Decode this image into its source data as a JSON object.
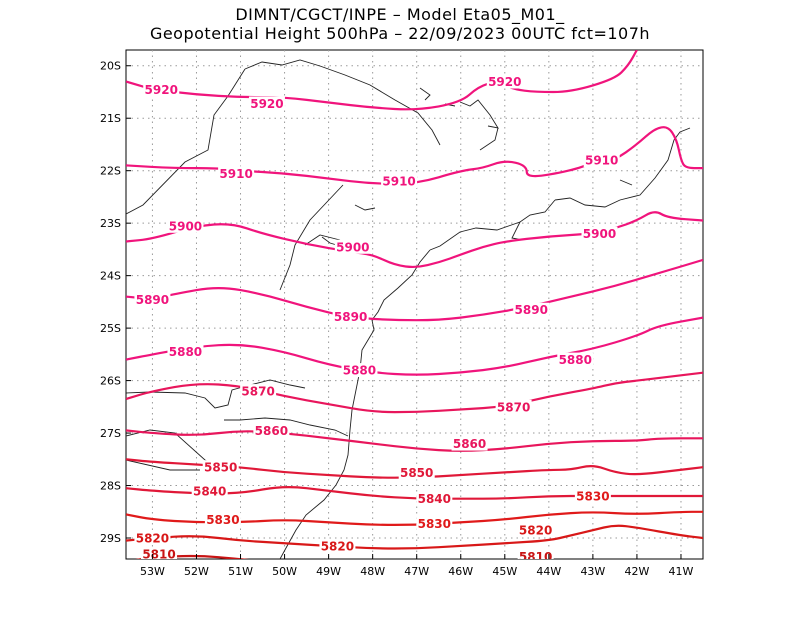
{
  "header": {
    "line1": "DIMNT/CGCT/INPE –   Model Eta05_M01_",
    "line2": "Geopotential Height 500hPa –  22/09/2023 00UTC fct=107h"
  },
  "chart_data": {
    "type": "contour",
    "title": "Geopotential Height 500hPa",
    "source": "DIMNT/CGCT/INPE",
    "model": "Eta05_M01_",
    "run": "22/09/2023 00UTC",
    "forecast": "fct=107h",
    "xlim": [
      -53.6,
      -40.5
    ],
    "ylim": [
      -29.4,
      -19.7
    ],
    "grid": true,
    "x_ticks": [
      {
        "value": -53,
        "label": "53W"
      },
      {
        "value": -52,
        "label": "52W"
      },
      {
        "value": -51,
        "label": "51W"
      },
      {
        "value": -50,
        "label": "50W"
      },
      {
        "value": -49,
        "label": "49W"
      },
      {
        "value": -48,
        "label": "48W"
      },
      {
        "value": -47,
        "label": "47W"
      },
      {
        "value": -46,
        "label": "46W"
      },
      {
        "value": -45,
        "label": "45W"
      },
      {
        "value": -44,
        "label": "44W"
      },
      {
        "value": -43,
        "label": "43W"
      },
      {
        "value": -42,
        "label": "42W"
      },
      {
        "value": -41,
        "label": "41W"
      }
    ],
    "y_ticks": [
      {
        "value": -20,
        "label": "20S"
      },
      {
        "value": -21,
        "label": "21S"
      },
      {
        "value": -22,
        "label": "22S"
      },
      {
        "value": -23,
        "label": "23S"
      },
      {
        "value": -24,
        "label": "24S"
      },
      {
        "value": -25,
        "label": "25S"
      },
      {
        "value": -26,
        "label": "26S"
      },
      {
        "value": -27,
        "label": "27S"
      },
      {
        "value": -28,
        "label": "28S"
      },
      {
        "value": -29,
        "label": "29S"
      }
    ],
    "contours": [
      {
        "level": 5920,
        "color": "#f0147c",
        "points": [
          [
            -53.6,
            -20.3
          ],
          [
            -53.0,
            -20.45
          ],
          [
            -52.0,
            -20.55
          ],
          [
            -51.0,
            -20.6
          ],
          [
            -50.0,
            -20.6
          ],
          [
            -49.0,
            -20.7
          ],
          [
            -48.0,
            -20.8
          ],
          [
            -47.0,
            -20.85
          ],
          [
            -46.0,
            -20.7
          ],
          [
            -45.6,
            -20.4
          ],
          [
            -45.2,
            -20.3
          ],
          [
            -44.8,
            -20.45
          ],
          [
            -44.3,
            -20.5
          ],
          [
            -43.5,
            -20.5
          ],
          [
            -42.5,
            -20.25
          ],
          [
            -42.2,
            -20.0
          ],
          [
            -42.0,
            -19.7
          ]
        ],
        "labels": [
          [
            -52.8,
            -20.45
          ],
          [
            -50.4,
            -20.72
          ],
          [
            -45.0,
            -20.3
          ]
        ]
      },
      {
        "level": 5910,
        "color": "#f0147c",
        "points": [
          [
            -53.6,
            -21.9
          ],
          [
            -52.5,
            -21.95
          ],
          [
            -51.5,
            -21.95
          ],
          [
            -51.0,
            -22.0
          ],
          [
            -50.0,
            -22.05
          ],
          [
            -49.0,
            -22.15
          ],
          [
            -48.0,
            -22.25
          ],
          [
            -47.0,
            -22.25
          ],
          [
            -46.0,
            -22.0
          ],
          [
            -45.5,
            -21.95
          ],
          [
            -45.0,
            -21.8
          ],
          [
            -44.5,
            -21.9
          ],
          [
            -44.5,
            -22.15
          ],
          [
            -43.5,
            -22.0
          ],
          [
            -43.0,
            -21.85
          ],
          [
            -42.5,
            -21.8
          ],
          [
            -42.0,
            -21.5
          ],
          [
            -41.6,
            -21.2
          ],
          [
            -41.3,
            -21.15
          ],
          [
            -41.1,
            -21.4
          ],
          [
            -41.0,
            -21.8
          ],
          [
            -40.9,
            -21.95
          ],
          [
            -40.5,
            -21.95
          ]
        ],
        "labels": [
          [
            -51.1,
            -22.05
          ],
          [
            -47.4,
            -22.2
          ],
          [
            -42.8,
            -21.8
          ]
        ]
      },
      {
        "level": 5900,
        "color": "#f0147c",
        "points": [
          [
            -53.6,
            -23.35
          ],
          [
            -53.0,
            -23.3
          ],
          [
            -52.0,
            -23.05
          ],
          [
            -51.2,
            -23.0
          ],
          [
            -50.5,
            -23.2
          ],
          [
            -49.5,
            -23.4
          ],
          [
            -48.5,
            -23.55
          ],
          [
            -48.0,
            -23.6
          ],
          [
            -47.5,
            -23.8
          ],
          [
            -47.0,
            -23.85
          ],
          [
            -46.5,
            -23.75
          ],
          [
            -46.0,
            -23.6
          ],
          [
            -45.5,
            -23.45
          ],
          [
            -45.0,
            -23.35
          ],
          [
            -44.0,
            -23.25
          ],
          [
            -43.0,
            -23.2
          ],
          [
            -42.5,
            -23.1
          ],
          [
            -42.0,
            -22.95
          ],
          [
            -41.6,
            -22.75
          ],
          [
            -41.3,
            -22.9
          ],
          [
            -40.5,
            -22.95
          ]
        ],
        "labels": [
          [
            -52.25,
            -23.05
          ],
          [
            -48.45,
            -23.45
          ],
          [
            -42.85,
            -23.2
          ]
        ]
      },
      {
        "level": 5890,
        "color": "#f0147c",
        "points": [
          [
            -53.6,
            -24.4
          ],
          [
            -53.0,
            -24.45
          ],
          [
            -52.5,
            -24.35
          ],
          [
            -51.5,
            -24.2
          ],
          [
            -50.5,
            -24.35
          ],
          [
            -49.5,
            -24.6
          ],
          [
            -48.5,
            -24.8
          ],
          [
            -47.5,
            -24.85
          ],
          [
            -46.5,
            -24.85
          ],
          [
            -45.5,
            -24.75
          ],
          [
            -44.5,
            -24.6
          ],
          [
            -43.5,
            -24.4
          ],
          [
            -42.5,
            -24.2
          ],
          [
            -41.5,
            -23.95
          ],
          [
            -40.5,
            -23.7
          ]
        ],
        "labels": [
          [
            -53.0,
            -24.45
          ],
          [
            -48.5,
            -24.78
          ],
          [
            -44.4,
            -24.65
          ]
        ]
      },
      {
        "level": 5880,
        "color": "#f0147c",
        "points": [
          [
            -53.6,
            -25.6
          ],
          [
            -53.0,
            -25.5
          ],
          [
            -52.0,
            -25.35
          ],
          [
            -51.0,
            -25.3
          ],
          [
            -50.0,
            -25.45
          ],
          [
            -49.0,
            -25.7
          ],
          [
            -48.0,
            -25.85
          ],
          [
            -47.0,
            -25.9
          ],
          [
            -46.0,
            -25.85
          ],
          [
            -45.0,
            -25.75
          ],
          [
            -44.0,
            -25.55
          ],
          [
            -43.0,
            -25.4
          ],
          [
            -42.0,
            -25.15
          ],
          [
            -41.5,
            -24.95
          ],
          [
            -40.5,
            -24.8
          ]
        ],
        "labels": [
          [
            -52.25,
            -25.45
          ],
          [
            -48.3,
            -25.8
          ],
          [
            -43.4,
            -25.6
          ]
        ]
      },
      {
        "level": 5870,
        "color": "#e8165c",
        "points": [
          [
            -53.6,
            -26.35
          ],
          [
            -53.0,
            -26.2
          ],
          [
            -52.0,
            -26.05
          ],
          [
            -51.0,
            -26.1
          ],
          [
            -50.0,
            -26.3
          ],
          [
            -49.0,
            -26.45
          ],
          [
            -48.0,
            -26.6
          ],
          [
            -47.0,
            -26.6
          ],
          [
            -46.0,
            -26.55
          ],
          [
            -45.0,
            -26.5
          ],
          [
            -44.0,
            -26.3
          ],
          [
            -43.0,
            -26.15
          ],
          [
            -42.5,
            -26.05
          ],
          [
            -42.0,
            -26.0
          ],
          [
            -41.5,
            -25.95
          ],
          [
            -40.5,
            -25.85
          ]
        ],
        "labels": [
          [
            -50.6,
            -26.2
          ],
          [
            -44.8,
            -26.5
          ]
        ]
      },
      {
        "level": 5860,
        "color": "#e8165c",
        "points": [
          [
            -53.6,
            -26.95
          ],
          [
            -53.0,
            -27.0
          ],
          [
            -52.0,
            -27.05
          ],
          [
            -51.0,
            -26.95
          ],
          [
            -50.0,
            -27.0
          ],
          [
            -49.0,
            -27.1
          ],
          [
            -48.0,
            -27.2
          ],
          [
            -47.0,
            -27.3
          ],
          [
            -46.0,
            -27.35
          ],
          [
            -45.0,
            -27.3
          ],
          [
            -44.0,
            -27.2
          ],
          [
            -43.0,
            -27.15
          ],
          [
            -42.0,
            -27.15
          ],
          [
            -41.5,
            -27.1
          ],
          [
            -40.5,
            -27.1
          ]
        ],
        "labels": [
          [
            -50.3,
            -26.95
          ],
          [
            -45.8,
            -27.2
          ]
        ]
      },
      {
        "level": 5850,
        "color": "#e01838",
        "points": [
          [
            -53.6,
            -27.5
          ],
          [
            -53.0,
            -27.55
          ],
          [
            -52.0,
            -27.6
          ],
          [
            -51.0,
            -27.65
          ],
          [
            -50.0,
            -27.75
          ],
          [
            -49.0,
            -27.8
          ],
          [
            -48.0,
            -27.85
          ],
          [
            -47.0,
            -27.85
          ],
          [
            -46.0,
            -27.8
          ],
          [
            -45.0,
            -27.75
          ],
          [
            -44.0,
            -27.7
          ],
          [
            -43.5,
            -27.7
          ],
          [
            -43.0,
            -27.6
          ],
          [
            -42.5,
            -27.75
          ],
          [
            -42.0,
            -27.8
          ],
          [
            -41.0,
            -27.7
          ],
          [
            -40.5,
            -27.65
          ]
        ],
        "labels": [
          [
            -51.45,
            -27.65
          ],
          [
            -47.0,
            -27.75
          ]
        ]
      },
      {
        "level": 5840,
        "color": "#e01838",
        "points": [
          [
            -53.6,
            -28.05
          ],
          [
            -53.0,
            -28.1
          ],
          [
            -52.0,
            -28.15
          ],
          [
            -51.0,
            -28.15
          ],
          [
            -50.0,
            -28.0
          ],
          [
            -49.0,
            -28.1
          ],
          [
            -48.0,
            -28.2
          ],
          [
            -47.0,
            -28.25
          ],
          [
            -46.0,
            -28.25
          ],
          [
            -45.0,
            -28.25
          ],
          [
            -44.0,
            -28.2
          ],
          [
            -43.0,
            -28.2
          ],
          [
            -42.0,
            -28.2
          ],
          [
            -41.0,
            -28.2
          ],
          [
            -40.5,
            -28.2
          ]
        ],
        "labels": [
          [
            -51.7,
            -28.1
          ],
          [
            -46.6,
            -28.25
          ]
        ]
      },
      {
        "level": 5830,
        "color": "#e01a1a",
        "points": [
          [
            -53.6,
            -28.55
          ],
          [
            -53.0,
            -28.65
          ],
          [
            -52.0,
            -28.7
          ],
          [
            -51.0,
            -28.7
          ],
          [
            -50.0,
            -28.65
          ],
          [
            -49.0,
            -28.7
          ],
          [
            -48.0,
            -28.75
          ],
          [
            -47.0,
            -28.75
          ],
          [
            -46.0,
            -28.7
          ],
          [
            -45.0,
            -28.65
          ],
          [
            -44.0,
            -28.55
          ],
          [
            -43.0,
            -28.5
          ],
          [
            -42.0,
            -28.55
          ],
          [
            -41.0,
            -28.5
          ],
          [
            -40.5,
            -28.5
          ]
        ],
        "labels": [
          [
            -51.4,
            -28.65
          ],
          [
            -46.6,
            -28.72
          ],
          [
            -43.0,
            -28.2
          ]
        ]
      },
      {
        "level": 5820,
        "color": "#d81818",
        "points": [
          [
            -53.6,
            -29.05
          ],
          [
            -53.0,
            -29.0
          ],
          [
            -52.0,
            -28.95
          ],
          [
            -51.0,
            -29.05
          ],
          [
            -50.0,
            -29.1
          ],
          [
            -49.0,
            -29.15
          ],
          [
            -48.0,
            -29.2
          ],
          [
            -47.0,
            -29.2
          ],
          [
            -46.0,
            -29.15
          ],
          [
            -45.0,
            -29.1
          ],
          [
            -44.0,
            -29.05
          ],
          [
            -43.5,
            -28.95
          ],
          [
            -43.0,
            -28.85
          ],
          [
            -42.5,
            -28.75
          ],
          [
            -42.0,
            -28.8
          ],
          [
            -41.0,
            -28.95
          ],
          [
            -40.5,
            -29.0
          ]
        ],
        "labels": [
          [
            -53.0,
            -29.0
          ],
          [
            -48.8,
            -29.15
          ],
          [
            -44.3,
            -28.85
          ]
        ]
      },
      {
        "level": 5810,
        "color": "#c81414",
        "points": [
          [
            -53.6,
            -29.45
          ],
          [
            -53.0,
            -29.37
          ],
          [
            -52.0,
            -29.33
          ],
          [
            -51.0,
            -29.4
          ],
          [
            -50.0,
            -29.5
          ]
        ],
        "labels": [
          [
            -52.85,
            -29.3
          ],
          [
            -44.3,
            -29.35
          ]
        ]
      }
    ]
  }
}
